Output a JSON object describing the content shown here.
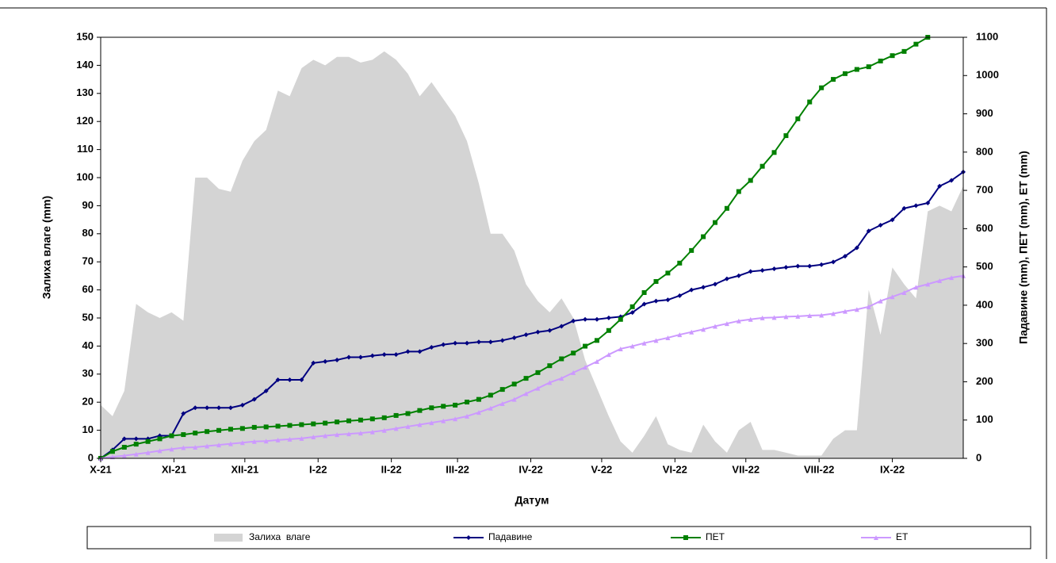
{
  "chart_data": {
    "type": "line",
    "xlabel": "Датум",
    "ylabel": "Залиха влаге (mm)",
    "y2label": "Падавине (mm), ПЕТ (mm), ЕТ (mm)",
    "xlim": [
      0,
      365
    ],
    "xticks": [
      {
        "value": 0,
        "label": "X-21"
      },
      {
        "value": 31,
        "label": "XI-21"
      },
      {
        "value": 61,
        "label": "XII-21"
      },
      {
        "value": 92,
        "label": "I-22"
      },
      {
        "value": 123,
        "label": "II-22"
      },
      {
        "value": 151,
        "label": "III-22"
      },
      {
        "value": 182,
        "label": "IV-22"
      },
      {
        "value": 212,
        "label": "V-22"
      },
      {
        "value": 243,
        "label": "VI-22"
      },
      {
        "value": 273,
        "label": "VII-22"
      },
      {
        "value": 304,
        "label": "VIII-22"
      },
      {
        "value": 335,
        "label": "IX-22"
      }
    ],
    "ylim": [
      0,
      150
    ],
    "yticks": [
      0,
      10,
      20,
      30,
      40,
      50,
      60,
      70,
      80,
      90,
      100,
      110,
      120,
      130,
      140,
      150
    ],
    "y2lim": [
      0,
      1100
    ],
    "y2ticks": [
      0,
      100,
      200,
      300,
      400,
      500,
      600,
      700,
      800,
      900,
      1000,
      1100
    ],
    "legend": "bottom",
    "x": [
      0,
      5,
      10,
      15,
      20,
      25,
      30,
      35,
      40,
      45,
      50,
      55,
      60,
      65,
      70,
      75,
      80,
      85,
      90,
      95,
      100,
      105,
      110,
      115,
      120,
      125,
      130,
      135,
      140,
      145,
      150,
      155,
      160,
      165,
      170,
      175,
      180,
      185,
      190,
      195,
      200,
      205,
      210,
      215,
      220,
      225,
      230,
      235,
      240,
      245,
      250,
      255,
      260,
      265,
      270,
      275,
      280,
      285,
      290,
      295,
      300,
      305,
      310,
      315,
      320,
      325,
      330,
      335,
      340,
      345,
      350,
      355,
      360,
      365
    ],
    "series": [
      {
        "name": "Залиха  влаге",
        "type": "area",
        "color": "#d4d4d4",
        "values": [
          19,
          15,
          24,
          55,
          52,
          50,
          52,
          49,
          100,
          100,
          96,
          95,
          106,
          113,
          117,
          131,
          129,
          139,
          142,
          140,
          143,
          143,
          141,
          142,
          145,
          142,
          137,
          129,
          134,
          128,
          122,
          113,
          98,
          80,
          80,
          74,
          62,
          56,
          52,
          57,
          50,
          35,
          25,
          15,
          6,
          2,
          8,
          15,
          5,
          3,
          2,
          12,
          6,
          2,
          10,
          13,
          3,
          3,
          2,
          1,
          1,
          1,
          7,
          10,
          10,
          60,
          44,
          68,
          62,
          57,
          88,
          90,
          88,
          97
        ]
      },
      {
        "name": "Падавине",
        "type": "line",
        "marker": "diamond",
        "axis": "y2",
        "color": "#000080",
        "values": [
          0,
          22,
          51,
          51,
          51,
          59,
          59,
          117,
          132,
          132,
          132,
          132,
          139,
          154,
          176,
          205,
          205,
          205,
          249,
          253,
          257,
          264,
          264,
          268,
          271,
          271,
          279,
          279,
          290,
          297,
          301,
          301,
          304,
          304,
          308,
          315,
          323,
          330,
          334,
          345,
          359,
          363,
          363,
          367,
          370,
          381,
          403,
          411,
          414,
          425,
          440,
          447,
          455,
          469,
          477,
          488,
          491,
          495,
          499,
          502,
          502,
          506,
          513,
          528,
          550,
          594,
          609,
          623,
          653,
          660,
          667,
          711,
          726,
          748
        ]
      },
      {
        "name": "ПЕТ",
        "type": "line",
        "marker": "square",
        "axis": "y2",
        "color": "#008000",
        "values": [
          0,
          18,
          29,
          37,
          44,
          51,
          59,
          62,
          66,
          70,
          73,
          76,
          78,
          81,
          82,
          84,
          86,
          88,
          90,
          92,
          95,
          98,
          100,
          103,
          106,
          112,
          117,
          125,
          132,
          136,
          139,
          147,
          154,
          165,
          180,
          194,
          209,
          224,
          242,
          260,
          275,
          293,
          308,
          334,
          363,
          396,
          433,
          462,
          484,
          510,
          543,
          579,
          616,
          653,
          697,
          726,
          763,
          799,
          843,
          887,
          931,
          968,
          990,
          1005,
          1016,
          1023,
          1038,
          1052,
          1063,
          1082,
          1100,
          null,
          null,
          null
        ]
      },
      {
        "name": "ЕТ",
        "type": "line",
        "marker": "triangle",
        "axis": "y2",
        "color": "#cc99ff",
        "values": [
          0,
          4,
          7,
          11,
          15,
          20,
          24,
          28,
          29,
          32,
          35,
          38,
          41,
          44,
          45,
          48,
          50,
          52,
          56,
          59,
          62,
          64,
          66,
          69,
          73,
          78,
          83,
          88,
          93,
          98,
          103,
          110,
          120,
          131,
          143,
          154,
          169,
          183,
          198,
          209,
          224,
          238,
          253,
          271,
          286,
          293,
          301,
          308,
          315,
          323,
          330,
          337,
          345,
          352,
          359,
          363,
          367,
          368,
          370,
          371,
          373,
          374,
          378,
          384,
          389,
          396,
          411,
          422,
          433,
          447,
          455,
          464,
          472,
          477
        ]
      }
    ]
  }
}
